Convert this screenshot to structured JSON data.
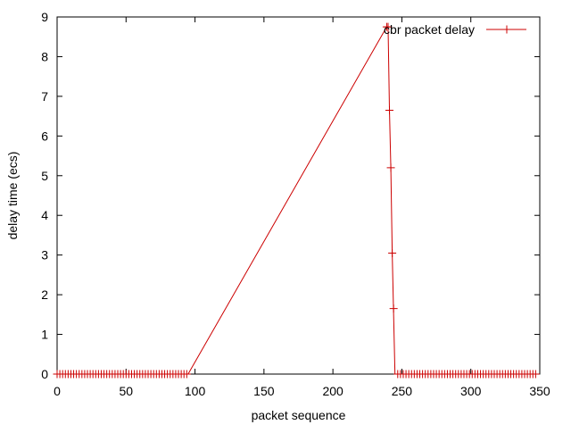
{
  "chart_data": {
    "type": "line",
    "title": "",
    "xlabel": "packet sequence",
    "ylabel": "delay time (ecs)",
    "xlim": [
      0,
      350
    ],
    "ylim": [
      0,
      9
    ],
    "x_ticks": [
      "0",
      "50",
      "100",
      "150",
      "200",
      "250",
      "300",
      "350"
    ],
    "y_ticks": [
      "0",
      "1",
      "2",
      "3",
      "4",
      "5",
      "6",
      "7",
      "8",
      "9"
    ],
    "grid": false,
    "legend_position": "top-right",
    "series": [
      {
        "name": "cbr packet delay",
        "color": "#cc0000",
        "marker": "plus",
        "line_points": {
          "x": [
            0,
            95,
            239,
            240,
            241,
            242,
            243,
            245,
            349
          ],
          "y": [
            0,
            0,
            8.75,
            8.75,
            6.65,
            5.2,
            3.05,
            0,
            0
          ]
        },
        "marker_points": {
          "x": [
            0,
            2,
            4,
            6,
            8,
            10,
            12,
            14,
            16,
            18,
            20,
            22,
            24,
            26,
            28,
            30,
            32,
            34,
            36,
            38,
            40,
            42,
            44,
            46,
            48,
            50,
            52,
            54,
            56,
            58,
            60,
            62,
            64,
            66,
            68,
            70,
            72,
            74,
            76,
            78,
            80,
            82,
            84,
            86,
            88,
            90,
            92,
            94,
            239,
            240,
            241,
            242,
            243,
            244,
            247,
            249,
            251,
            253,
            255,
            257,
            259,
            261,
            263,
            265,
            267,
            269,
            271,
            273,
            275,
            277,
            279,
            281,
            283,
            285,
            287,
            289,
            291,
            293,
            295,
            297,
            299,
            301,
            303,
            305,
            307,
            309,
            311,
            313,
            315,
            317,
            319,
            321,
            323,
            325,
            327,
            329,
            331,
            333,
            335,
            337,
            339,
            341,
            343,
            345,
            347
          ],
          "y": [
            0,
            0,
            0,
            0,
            0,
            0,
            0,
            0,
            0,
            0,
            0,
            0,
            0,
            0,
            0,
            0,
            0,
            0,
            0,
            0,
            0,
            0,
            0,
            0,
            0,
            0,
            0,
            0,
            0,
            0,
            0,
            0,
            0,
            0,
            0,
            0,
            0,
            0,
            0,
            0,
            0,
            0,
            0,
            0,
            0,
            0,
            0,
            0,
            8.75,
            8.75,
            6.65,
            5.2,
            3.05,
            1.65,
            0,
            0,
            0,
            0,
            0,
            0,
            0,
            0,
            0,
            0,
            0,
            0,
            0,
            0,
            0,
            0,
            0,
            0,
            0,
            0,
            0,
            0,
            0,
            0,
            0,
            0,
            0,
            0,
            0,
            0,
            0,
            0,
            0,
            0,
            0,
            0,
            0,
            0,
            0,
            0,
            0,
            0,
            0,
            0,
            0,
            0,
            0,
            0,
            0,
            0,
            0
          ]
        }
      }
    ]
  }
}
